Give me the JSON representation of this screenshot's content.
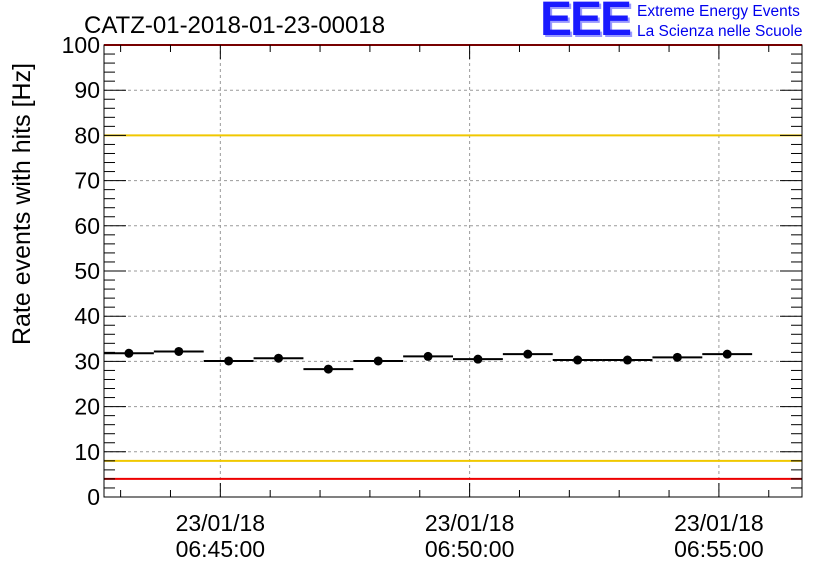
{
  "header": {
    "run_title": "CATZ-01-2018-01-23-00018"
  },
  "logo": {
    "letters": "EEE",
    "line1": "Extreme Energy Events",
    "line2": "La Scienza nelle Scuole",
    "color": "#0000ee"
  },
  "chart_data": {
    "type": "scatter",
    "title": "CATZ-01-2018-01-23-00018",
    "xlabel": "",
    "ylabel": "Rate events with hits [Hz]",
    "ylim": [
      0,
      100
    ],
    "xlim": [
      "23/01/18 06:42:40",
      "23/01/18 06:56:40"
    ],
    "x_tick_labels": [
      {
        "date": "23/01/18",
        "time": "06:45:00"
      },
      {
        "date": "23/01/18",
        "time": "06:50:00"
      },
      {
        "date": "23/01/18",
        "time": "06:55:00"
      }
    ],
    "y_ticks": [
      0,
      10,
      20,
      30,
      40,
      50,
      60,
      70,
      80,
      90,
      100
    ],
    "grid": true,
    "bin_width_seconds": 60,
    "points": [
      {
        "t": "06:43:10",
        "value": 31.8
      },
      {
        "t": "06:44:10",
        "value": 32.2
      },
      {
        "t": "06:45:10",
        "value": 30.1
      },
      {
        "t": "06:46:10",
        "value": 30.7
      },
      {
        "t": "06:47:10",
        "value": 28.3
      },
      {
        "t": "06:48:10",
        "value": 30.1
      },
      {
        "t": "06:49:10",
        "value": 31.1
      },
      {
        "t": "06:50:10",
        "value": 30.5
      },
      {
        "t": "06:51:10",
        "value": 31.6
      },
      {
        "t": "06:52:10",
        "value": 30.3
      },
      {
        "t": "06:53:10",
        "value": 30.3
      },
      {
        "t": "06:54:10",
        "value": 30.9
      },
      {
        "t": "06:55:10",
        "value": 31.6
      }
    ],
    "reference_lines": [
      {
        "value": 100,
        "color": "#ee0000"
      },
      {
        "value": 80,
        "color": "#f0c800"
      },
      {
        "value": 8,
        "color": "#f0c800"
      },
      {
        "value": 4,
        "color": "#ee0000"
      }
    ]
  }
}
